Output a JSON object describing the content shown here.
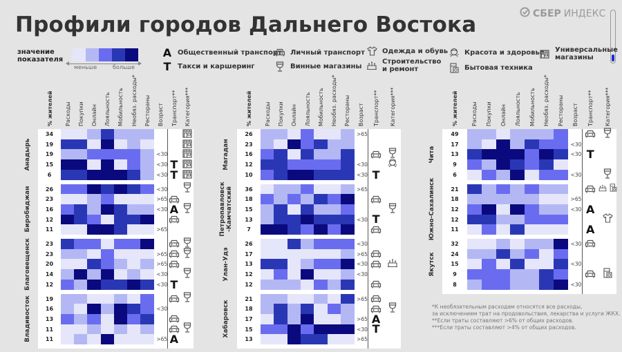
{
  "title": "Профили городов Дальнего Востока",
  "logo": {
    "brand": "СБЕР",
    "product": "ИНДЕКС"
  },
  "colors": {
    "levels": [
      "#e6e6fa",
      "#b3b8f4",
      "#6a6cf0",
      "#2a37b5",
      "#0a0a7e"
    ],
    "background": "#e4e4e4"
  },
  "legend": {
    "scale_label": "значение показателя",
    "less": "меньше",
    "more": "больше",
    "items": [
      {
        "icon": "A",
        "label": "Общественный транспорт"
      },
      {
        "icon": "T",
        "label": "Такси и каршеринг"
      },
      {
        "icon": "car",
        "label": "Личный транспорт"
      },
      {
        "icon": "wine",
        "label": "Винные магазины"
      },
      {
        "icon": "clothes",
        "label": "Одежда и обувь"
      },
      {
        "icon": "construction",
        "label": "Строительство и ремонт"
      },
      {
        "icon": "beauty",
        "label": "Красота и здоровье"
      },
      {
        "icon": "appliance",
        "label": "Бытовая техника"
      },
      {
        "icon": "shop",
        "label": "Универсальные магазины"
      }
    ]
  },
  "columns": {
    "pct": "% жителей",
    "metrics": [
      "Расходы",
      "Покупки",
      "Онлайн",
      "Лояльность",
      "Мобильность",
      "Необяз. расходы*",
      "Рестораны"
    ],
    "age": "Возраст",
    "transport": "Транспорт**",
    "category": "Категория***"
  },
  "panels": [
    [
      {
        "city": "Анадырь",
        "rows": [
          {
            "pct": "34",
            "values": [
              1,
              1,
              2,
              4,
              2,
              2,
              2
            ],
            "age": "",
            "transport": "",
            "category": [
              "shop"
            ]
          },
          {
            "pct": "19",
            "values": [
              4,
              4,
              1,
              5,
              1,
              2,
              1
            ],
            "age": "",
            "transport": "",
            "category": [
              "shop"
            ]
          },
          {
            "pct": "19",
            "values": [
              2,
              2,
              3,
              3,
              3,
              3,
              2
            ],
            "age": "<30",
            "transport": "",
            "category": [
              "shop"
            ]
          },
          {
            "pct": "15",
            "values": [
              5,
              5,
              1,
              5,
              1,
              3,
              2
            ],
            "age": "<30",
            "transport": "T",
            "category": [
              "shop"
            ]
          },
          {
            "pct": "6",
            "values": [
              4,
              4,
              5,
              5,
              5,
              4,
              2
            ],
            "age": "<30",
            "transport": "T",
            "category": [
              "shop"
            ]
          }
        ]
      },
      {
        "city": "Биробиджан",
        "rows": [
          {
            "pct": "26",
            "values": [
              3,
              3,
              5,
              4,
              5,
              4,
              3
            ],
            "age": "<30",
            "transport": "",
            "category": [
              "wine"
            ]
          },
          {
            "pct": "23",
            "values": [
              1,
              1,
              2,
              3,
              1,
              1,
              1
            ],
            "age": ">65",
            "transport": "car",
            "category": []
          },
          {
            "pct": "16",
            "values": [
              3,
              4,
              2,
              5,
              4,
              2,
              2
            ],
            "age": "<30",
            "transport": "A",
            "category": [
              "wine"
            ]
          },
          {
            "pct": "12",
            "values": [
              5,
              4,
              3,
              1,
              4,
              4,
              5
            ],
            "age": "",
            "transport": "car",
            "category": []
          },
          {
            "pct": "11",
            "values": [
              1,
              1,
              5,
              5,
              4,
              1,
              1
            ],
            "age": ">65",
            "transport": "",
            "category": []
          }
        ]
      },
      {
        "city": "Благовещенск",
        "rows": [
          {
            "pct": "23",
            "values": [
              4,
              3,
              3,
              1,
              3,
              3,
              5
            ],
            "age": "",
            "transport": "car",
            "category": [
              "wine"
            ]
          },
          {
            "pct": "23",
            "values": [
              2,
              2,
              1,
              3,
              1,
              1,
              1
            ],
            "age": ">65",
            "transport": "car",
            "category": [
              "wine"
            ]
          },
          {
            "pct": "20",
            "values": [
              1,
              1,
              4,
              3,
              2,
              1,
              2
            ],
            "age": ">65",
            "transport": "car",
            "category": []
          },
          {
            "pct": "14",
            "values": [
              2,
              5,
              2,
              5,
              1,
              2,
              1
            ],
            "age": "<30",
            "transport": "",
            "category": [
              "wine"
            ]
          },
          {
            "pct": "12",
            "values": [
              3,
              2,
              5,
              4,
              4,
              5,
              4
            ],
            "age": "<30",
            "transport": "T",
            "category": []
          }
        ]
      },
      {
        "city": "Владивосток",
        "rows": [
          {
            "pct": "19",
            "values": [
              2,
              2,
              1,
              1,
              2,
              1,
              3
            ],
            "age": "",
            "transport": "car",
            "category": [
              "wine"
            ]
          },
          {
            "pct": "16",
            "values": [
              2,
              1,
              5,
              2,
              5,
              4,
              3
            ],
            "age": "<30",
            "transport": "",
            "category": []
          },
          {
            "pct": "13",
            "values": [
              3,
              2,
              3,
              1,
              5,
              3,
              4
            ],
            "age": "",
            "transport": "car",
            "category": []
          },
          {
            "pct": "11",
            "values": [
              1,
              1,
              2,
              1,
              2,
              1,
              2
            ],
            "age": "",
            "transport": "car",
            "category": [
              "wine"
            ]
          },
          {
            "pct": "11",
            "values": [
              1,
              2,
              1,
              5,
              1,
              1,
              1
            ],
            "age": ">65",
            "transport": "A",
            "category": []
          }
        ]
      }
    ],
    [
      {
        "city": "Магадан",
        "rows": [
          {
            "pct": "26",
            "values": [
              2,
              2,
              1,
              3,
              1,
              1,
              2
            ],
            "age": ">65",
            "transport": "",
            "category": []
          },
          {
            "pct": "23",
            "values": [
              2,
              1,
              5,
              3,
              4,
              2,
              2
            ],
            "age": "",
            "transport": "",
            "category": []
          },
          {
            "pct": "16",
            "values": [
              3,
              4,
              1,
              4,
              2,
              2,
              4
            ],
            "age": "",
            "transport": "car",
            "category": [
              "wine"
            ]
          },
          {
            "pct": "12",
            "values": [
              4,
              4,
              3,
              3,
              3,
              3,
              4
            ],
            "age": "<30",
            "transport": "",
            "category": [
              "beauty"
            ]
          },
          {
            "pct": "10",
            "values": [
              3,
              4,
              5,
              5,
              4,
              4,
              4
            ],
            "age": "<30",
            "transport": "T",
            "category": []
          }
        ]
      },
      {
        "city": "Петропавловск -Камчатский",
        "rows": [
          {
            "pct": "36",
            "values": [
              1,
              2,
              2,
              3,
              1,
              1,
              2
            ],
            "age": ">65",
            "transport": "",
            "category": []
          },
          {
            "pct": "18",
            "values": [
              3,
              2,
              3,
              2,
              4,
              3,
              5
            ],
            "age": "",
            "transport": "car",
            "category": []
          },
          {
            "pct": "15",
            "values": [
              2,
              4,
              1,
              4,
              2,
              2,
              3
            ],
            "age": "",
            "transport": "",
            "category": [
              "wine"
            ]
          },
          {
            "pct": "13",
            "values": [
              2,
              4,
              4,
              5,
              4,
              4,
              4
            ],
            "age": "<30",
            "transport": "T",
            "category": []
          },
          {
            "pct": "7",
            "values": [
              5,
              5,
              4,
              3,
              5,
              3,
              5
            ],
            "age": "",
            "transport": "car",
            "category": []
          }
        ]
      },
      {
        "city": "Улан-Удэ",
        "rows": [
          {
            "pct": "26",
            "values": [
              1,
              1,
              4,
              2,
              3,
              3,
              3
            ],
            "age": "<30",
            "transport": "",
            "category": []
          },
          {
            "pct": "17",
            "values": [
              1,
              1,
              1,
              1,
              1,
              1,
              2
            ],
            "age": ">65",
            "transport": "car",
            "category": []
          },
          {
            "pct": "13",
            "values": [
              4,
              4,
              1,
              2,
              3,
              3,
              5
            ],
            "age": "<30",
            "transport": "car",
            "category": [
              "construction"
            ]
          },
          {
            "pct": "12",
            "values": [
              1,
              3,
              1,
              5,
              1,
              1,
              2
            ],
            "age": "<30",
            "transport": "",
            "category": []
          },
          {
            "pct": "12",
            "values": [
              2,
              2,
              2,
              1,
              3,
              2,
              4
            ],
            "age": "",
            "transport": "car",
            "category": []
          }
        ]
      },
      {
        "city": "Хабаровск",
        "rows": [
          {
            "pct": "21",
            "values": [
              2,
              2,
              1,
              1,
              2,
              1,
              4
            ],
            "age": ">65",
            "transport": "car",
            "category": []
          },
          {
            "pct": "18",
            "values": [
              2,
              4,
              2,
              4,
              1,
              3,
              2
            ],
            "age": "",
            "transport": "car",
            "category": [
              "wine"
            ]
          },
          {
            "pct": "17",
            "values": [
              1,
              4,
              2,
              5,
              1,
              1,
              2
            ],
            "age": ">65",
            "transport": "A",
            "category": []
          },
          {
            "pct": "15",
            "values": [
              3,
              3,
              5,
              3,
              5,
              5,
              5
            ],
            "age": "<30",
            "transport": "T",
            "category": []
          },
          {
            "pct": "13",
            "values": [
              1,
              1,
              5,
              4,
              4,
              1,
              1
            ],
            "age": ">65",
            "transport": "",
            "category": []
          }
        ]
      }
    ],
    [
      {
        "city": "Чита",
        "rows": [
          {
            "pct": "49",
            "values": [
              2,
              2,
              1,
              2,
              2,
              2,
              3
            ],
            "age": "",
            "transport": "car",
            "category": [
              "wine"
            ]
          },
          {
            "pct": "17",
            "values": [
              2,
              1,
              5,
              2,
              4,
              3,
              3
            ],
            "age": "<30",
            "transport": "",
            "category": []
          },
          {
            "pct": "13",
            "values": [
              4,
              5,
              5,
              5,
              3,
              5,
              4
            ],
            "age": "<30",
            "transport": "T",
            "category": []
          },
          {
            "pct": "9",
            "values": [
              3,
              2,
              5,
              4,
              3,
              4,
              1
            ],
            "age": "",
            "transport": "",
            "category": []
          },
          {
            "pct": "6",
            "values": [
              1,
              3,
              2,
              5,
              1,
              3,
              3
            ],
            "age": "<30",
            "transport": "",
            "category": [
              "wine"
            ]
          }
        ]
      },
      {
        "city": "Южно-Сахалинск",
        "rows": [
          {
            "pct": "21",
            "values": [
              4,
              2,
              3,
              2,
              3,
              2,
              2
            ],
            "age": "",
            "transport": "car",
            "category": [
              "construction",
              "appliance"
            ]
          },
          {
            "pct": "18",
            "values": [
              2,
              2,
              2,
              2,
              2,
              1,
              1
            ],
            "age": ">65",
            "transport": "",
            "category": []
          },
          {
            "pct": "12",
            "values": [
              3,
              5,
              1,
              5,
              3,
              2,
              2
            ],
            "age": "<30",
            "transport": "A",
            "category": []
          },
          {
            "pct": "12",
            "values": [
              4,
              4,
              2,
              2,
              3,
              3,
              3
            ],
            "age": "",
            "transport": "",
            "category": [
              "clothes"
            ]
          },
          {
            "pct": "11",
            "values": [
              1,
              3,
              1,
              4,
              1,
              1,
              1
            ],
            "age": "",
            "transport": "A",
            "category": []
          }
        ]
      },
      {
        "city": "Якутск",
        "rows": [
          {
            "pct": "32",
            "values": [
              1,
              1,
              2,
              1,
              2,
              2,
              5
            ],
            "age": "<30",
            "transport": "car",
            "category": []
          },
          {
            "pct": "24",
            "values": [
              2,
              2,
              4,
              2,
              3,
              1,
              3
            ],
            "age": "",
            "transport": "",
            "category": []
          },
          {
            "pct": "15",
            "values": [
              1,
              3,
              1,
              4,
              1,
              1,
              4
            ],
            "age": "<30",
            "transport": "",
            "category": []
          },
          {
            "pct": "9",
            "values": [
              3,
              3,
              3,
              2,
              2,
              4,
              3
            ],
            "age": "",
            "transport": "car",
            "category": [
              "appliance"
            ]
          },
          {
            "pct": "8",
            "values": [
              2,
              3,
              3,
              2,
              2,
              4,
              5
            ],
            "age": "<30",
            "transport": "",
            "category": []
          }
        ]
      }
    ]
  ],
  "footnotes": [
    "*К необязательным расходам относятся все расходы,",
    "за исключением трат на продовольствия, лекарства и услуги ЖКХ.",
    "**Если траты составляют >6% от общих расходов.",
    "***Если траты составляют >4% от общих расходов."
  ]
}
